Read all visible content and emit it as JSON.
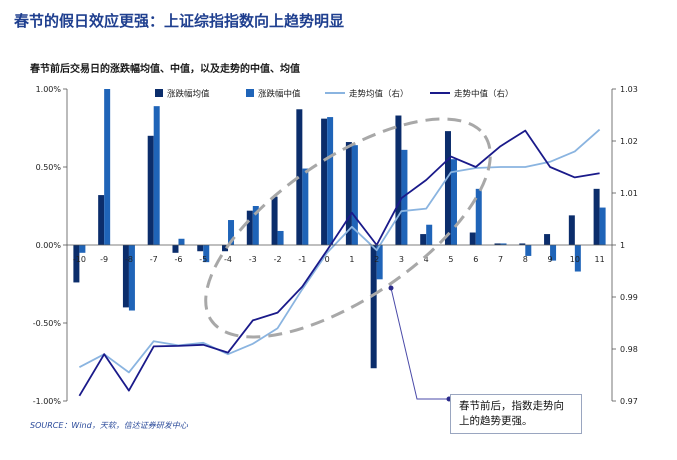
{
  "page": {
    "headline": "春节的假日效应更强：上证综指指数向上趋势明显",
    "source": "SOURCE：Wind，天软，信达证券研发中心",
    "callout": "春节前后，指数走势向上的趋势更强。"
  },
  "chart_data": {
    "type": "bar",
    "title": "春节前后交易日的涨跌幅均值、中值，以及走势的中值、均值",
    "categories": [
      "-10",
      "-9",
      "-8",
      "-7",
      "-6",
      "-5",
      "-4",
      "-3",
      "-2",
      "-1",
      "0",
      "1",
      "2",
      "3",
      "4",
      "5",
      "6",
      "7",
      "8",
      "9",
      "10",
      "11"
    ],
    "y_left": {
      "range": [
        -1.0,
        1.0
      ],
      "ticks": [
        "-1.00%",
        "-0.50%",
        "0.00%",
        "0.50%",
        "1.00%"
      ]
    },
    "y_right": {
      "range": [
        0.97,
        1.03
      ],
      "ticks": [
        "0.97",
        "0.98",
        "0.99",
        "1",
        "1.01",
        "1.02",
        "1.03"
      ]
    },
    "legend_position": "top-right",
    "series": [
      {
        "name": "涨跌幅均值",
        "kind": "bar",
        "axis": "left",
        "color": "#0b2d6b",
        "values": [
          -0.24,
          0.32,
          -0.4,
          0.7,
          -0.05,
          -0.04,
          -0.04,
          0.22,
          0.31,
          0.87,
          0.81,
          0.66,
          -0.79,
          0.83,
          0.07,
          0.73,
          0.08,
          0.01,
          0.01,
          0.07,
          0.19,
          0.36
        ]
      },
      {
        "name": "涨跌幅中值",
        "kind": "bar",
        "axis": "left",
        "color": "#1f64b8",
        "values": [
          -0.05,
          1.0,
          -0.42,
          0.89,
          0.04,
          -0.11,
          0.16,
          0.25,
          0.09,
          0.49,
          0.82,
          0.64,
          -0.22,
          0.61,
          0.13,
          0.55,
          0.36,
          0.01,
          -0.07,
          -0.1,
          -0.17,
          0.24
        ]
      },
      {
        "name": "走势均值（右）",
        "kind": "line",
        "axis": "right",
        "color": "#8ab4e0",
        "values": [
          0.9765,
          0.979,
          0.9755,
          0.9815,
          0.9807,
          0.9812,
          0.979,
          0.981,
          0.984,
          0.9915,
          0.9985,
          1.0035,
          0.999,
          1.0065,
          1.007,
          1.014,
          1.0148,
          1.015,
          1.015,
          1.016,
          1.018,
          1.0222
        ]
      },
      {
        "name": "走势中值（右）",
        "kind": "line",
        "axis": "right",
        "color": "#1a1a8a",
        "values": [
          0.971,
          0.979,
          0.972,
          0.9805,
          0.9806,
          0.9808,
          0.9793,
          0.9855,
          0.987,
          0.992,
          0.999,
          1.0062,
          1.0,
          1.009,
          1.0125,
          1.017,
          1.015,
          1.019,
          1.022,
          1.015,
          1.013,
          1.0138
        ]
      }
    ]
  }
}
